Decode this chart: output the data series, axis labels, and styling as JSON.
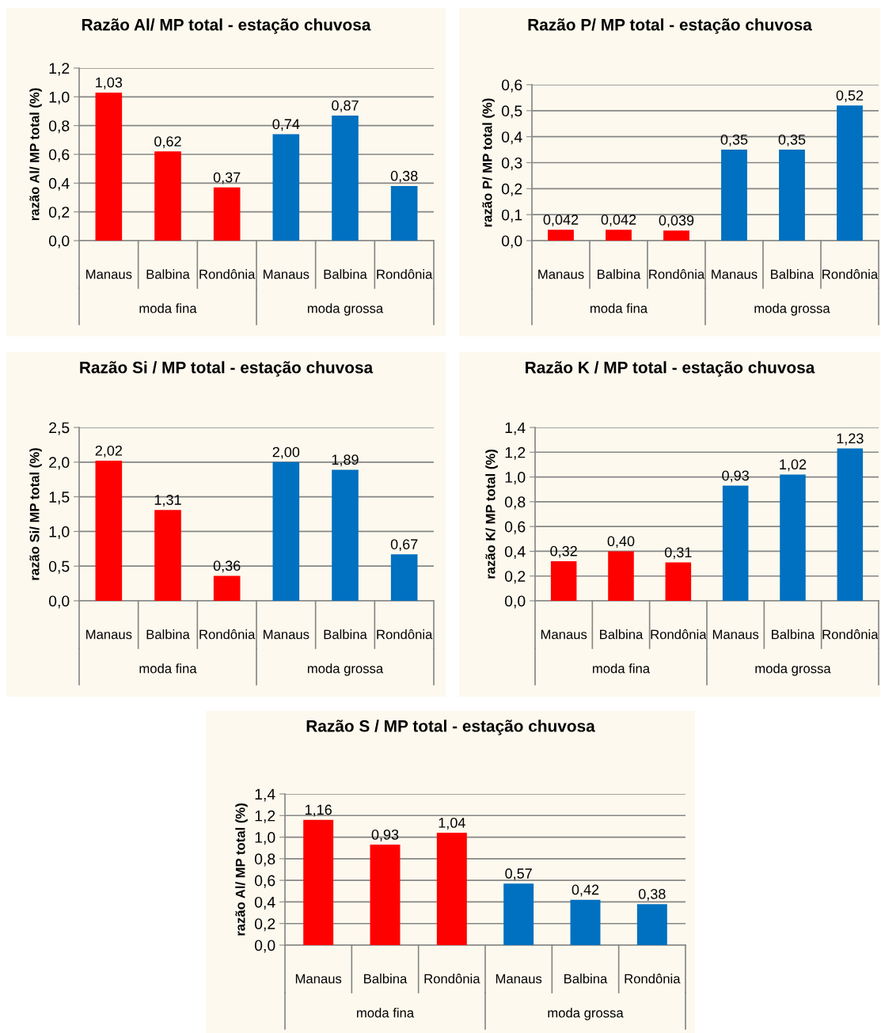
{
  "chart_data": [
    {
      "type": "bar",
      "title": "Razão Al/ MP total - estação chuvosa",
      "ylabel": "razão Al/ MP total (%)",
      "categories": [
        "Manaus",
        "Balbina",
        "Rondônia",
        "Manaus",
        "Balbina",
        "Rondônia"
      ],
      "values": [
        1.03,
        0.62,
        0.37,
        0.74,
        0.87,
        0.38
      ],
      "value_labels": [
        "1,03",
        "0,62",
        "0,37",
        "0,74",
        "0,87",
        "0,38"
      ],
      "colors": [
        "#ff0000",
        "#ff0000",
        "#ff0000",
        "#0070c0",
        "#0070c0",
        "#0070c0"
      ],
      "ylim": [
        0,
        1.2
      ],
      "yticks": [
        {
          "value": 0,
          "label": "0,0"
        },
        {
          "value": 0.2,
          "label": "0,2"
        },
        {
          "value": 0.4,
          "label": "0,4"
        },
        {
          "value": 0.6,
          "label": "0,6"
        },
        {
          "value": 0.8,
          "label": "0,8"
        },
        {
          "value": 1.0,
          "label": "1,0"
        },
        {
          "value": 1.2,
          "label": "1,2"
        }
      ],
      "grid": "y",
      "annotations": [
        "moda fina",
        "moda grossa"
      ]
    },
    {
      "type": "bar",
      "title": "Razão P/ MP total - estação chuvosa",
      "ylabel": "razão P/ MP total (%)",
      "categories": [
        "Manaus",
        "Balbina",
        "Rondônia",
        "Manaus",
        "Balbina",
        "Rondônia"
      ],
      "values": [
        0.042,
        0.042,
        0.039,
        0.35,
        0.35,
        0.52
      ],
      "value_labels": [
        "0,042",
        "0,042",
        "0,039",
        "0,35",
        "0,35",
        "0,52"
      ],
      "colors": [
        "#ff0000",
        "#ff0000",
        "#ff0000",
        "#0070c0",
        "#0070c0",
        "#0070c0"
      ],
      "ylim": [
        0,
        0.6
      ],
      "yticks": [
        {
          "value": 0,
          "label": "0,0"
        },
        {
          "value": 0.1,
          "label": "0,1"
        },
        {
          "value": 0.2,
          "label": "0,2"
        },
        {
          "value": 0.3,
          "label": "0,3"
        },
        {
          "value": 0.4,
          "label": "0,4"
        },
        {
          "value": 0.5,
          "label": "0,5"
        },
        {
          "value": 0.6,
          "label": "0,6"
        }
      ],
      "grid": "y",
      "annotations": [
        "moda fina",
        "moda grossa"
      ]
    },
    {
      "type": "bar",
      "title": "Razão Si / MP total - estação chuvosa",
      "ylabel": "razão Si/ MP total (%)",
      "categories": [
        "Manaus",
        "Balbina",
        "Rondônia",
        "Manaus",
        "Balbina",
        "Rondônia"
      ],
      "values": [
        2.02,
        1.31,
        0.36,
        2.0,
        1.89,
        0.67
      ],
      "value_labels": [
        "2,02",
        "1,31",
        "0,36",
        "2,00",
        "1,89",
        "0,67"
      ],
      "colors": [
        "#ff0000",
        "#ff0000",
        "#ff0000",
        "#0070c0",
        "#0070c0",
        "#0070c0"
      ],
      "ylim": [
        0,
        2.5
      ],
      "yticks": [
        {
          "value": 0,
          "label": "0,0"
        },
        {
          "value": 0.5,
          "label": "0,5"
        },
        {
          "value": 1.0,
          "label": "1,0"
        },
        {
          "value": 1.5,
          "label": "1,5"
        },
        {
          "value": 2.0,
          "label": "2,0"
        },
        {
          "value": 2.5,
          "label": "2,5"
        }
      ],
      "grid": "y",
      "annotations": [
        "moda fina",
        "moda grossa"
      ]
    },
    {
      "type": "bar",
      "title": "Razão K / MP total - estação chuvosa",
      "ylabel": "razão K/ MP total (%)",
      "categories": [
        "Manaus",
        "Balbina",
        "Rondônia",
        "Manaus",
        "Balbina",
        "Rondônia"
      ],
      "values": [
        0.32,
        0.4,
        0.31,
        0.93,
        1.02,
        1.23
      ],
      "value_labels": [
        "0,32",
        "0,40",
        "0,31",
        "0,93",
        "1,02",
        "1,23"
      ],
      "colors": [
        "#ff0000",
        "#ff0000",
        "#ff0000",
        "#0070c0",
        "#0070c0",
        "#0070c0"
      ],
      "ylim": [
        0,
        1.4
      ],
      "yticks": [
        {
          "value": 0,
          "label": "0,0"
        },
        {
          "value": 0.2,
          "label": "0,2"
        },
        {
          "value": 0.4,
          "label": "0,4"
        },
        {
          "value": 0.6,
          "label": "0,6"
        },
        {
          "value": 0.8,
          "label": "0,8"
        },
        {
          "value": 1.0,
          "label": "1,0"
        },
        {
          "value": 1.2,
          "label": "1,2"
        },
        {
          "value": 1.4,
          "label": "1,4"
        }
      ],
      "grid": "y",
      "annotations": [
        "moda fina",
        "moda grossa"
      ]
    },
    {
      "type": "bar",
      "title": "Razão S / MP total - estação chuvosa",
      "ylabel": "razão Al/ MP total (%)",
      "categories": [
        "Manaus",
        "Balbina",
        "Rondônia",
        "Manaus",
        "Balbina",
        "Rondônia"
      ],
      "values": [
        1.16,
        0.93,
        1.04,
        0.57,
        0.42,
        0.38
      ],
      "value_labels": [
        "1,16",
        "0,93",
        "1,04",
        "0,57",
        "0,42",
        "0,38"
      ],
      "colors": [
        "#ff0000",
        "#ff0000",
        "#ff0000",
        "#0070c0",
        "#0070c0",
        "#0070c0"
      ],
      "ylim": [
        0,
        1.4
      ],
      "yticks": [
        {
          "value": 0,
          "label": "0,0"
        },
        {
          "value": 0.2,
          "label": "0,2"
        },
        {
          "value": 0.4,
          "label": "0,4"
        },
        {
          "value": 0.6,
          "label": "0,6"
        },
        {
          "value": 0.8,
          "label": "0,8"
        },
        {
          "value": 1.0,
          "label": "1,0"
        },
        {
          "value": 1.2,
          "label": "1,2"
        },
        {
          "value": 1.4,
          "label": "1,4"
        }
      ],
      "grid": "y",
      "annotations": [
        "moda fina",
        "moda grossa"
      ]
    }
  ]
}
